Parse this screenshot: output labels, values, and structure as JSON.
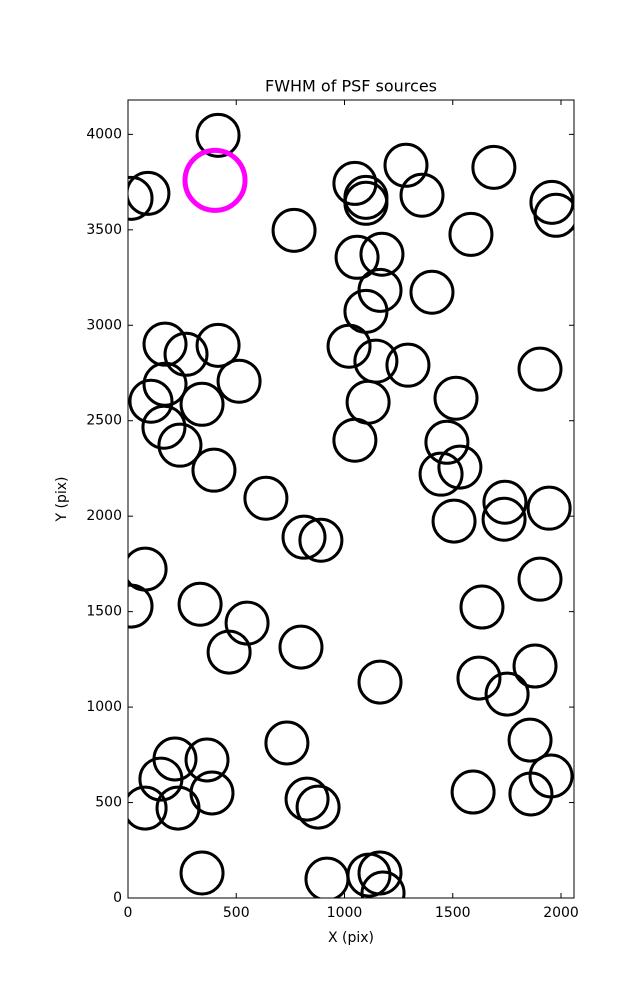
{
  "chart_data": {
    "type": "scatter",
    "title": "FWHM of PSF sources",
    "x_label": "X (pix)",
    "y_label": "Y (pix)",
    "xlim": [
      0,
      2060
    ],
    "ylim": [
      0,
      4180
    ],
    "xticks": [
      0,
      500,
      1000,
      1500,
      2000
    ],
    "yticks": [
      0,
      500,
      1000,
      1500,
      2000,
      2500,
      3000,
      3500,
      4000
    ],
    "series": [
      {
        "color": "#000000",
        "x": [
          416,
          92,
          14,
          767,
          1048,
          1099,
          1099,
          1284,
          1358,
          1690,
          1958,
          1977,
          1584,
          1058,
          1173,
          1164,
          1099,
          1404,
          171,
          268,
          416,
          513,
          171,
          106,
          342,
          166,
          240,
          397,
          1021,
          1145,
          1293,
          1109,
          1048,
          1515,
          1473,
          1533,
          1446,
          1903,
          637,
          813,
          891,
          1506,
          1741,
          1737,
          1945,
          79,
          14,
          333,
          550,
          467,
          799,
          1635,
          1903,
          1164,
          1621,
          1751,
          1880,
          734,
          217,
          365,
          152,
          388,
          231,
          79,
          827,
          878,
          1857,
          1954,
          1861,
          1594,
          342,
          919,
          1113,
          1164,
          1178
        ],
        "values": [
          3995,
          3691,
          3665,
          3497,
          3743,
          3670,
          3639,
          3838,
          3681,
          3827,
          3644,
          3576,
          3476,
          3356,
          3372,
          3183,
          3073,
          3173,
          2901,
          2848,
          2895,
          2707,
          2691,
          2602,
          2586,
          2466,
          2372,
          2241,
          2890,
          2812,
          2791,
          2597,
          2398,
          2618,
          2387,
          2257,
          2220,
          2770,
          2094,
          1890,
          1874,
          1974,
          2073,
          1984,
          2042,
          1723,
          1529,
          1539,
          1440,
          1288,
          1314,
          1524,
          1670,
          1131,
          1152,
          1068,
          1215,
          812,
          728,
          723,
          623,
          550,
          471,
          471,
          518,
          476,
          827,
          639,
          545,
          555,
          131,
          99,
          120,
          131,
          26
        ]
      },
      {
        "color": "#ff00ff",
        "x": [
          402
        ],
        "values": [
          3759
        ]
      }
    ]
  }
}
